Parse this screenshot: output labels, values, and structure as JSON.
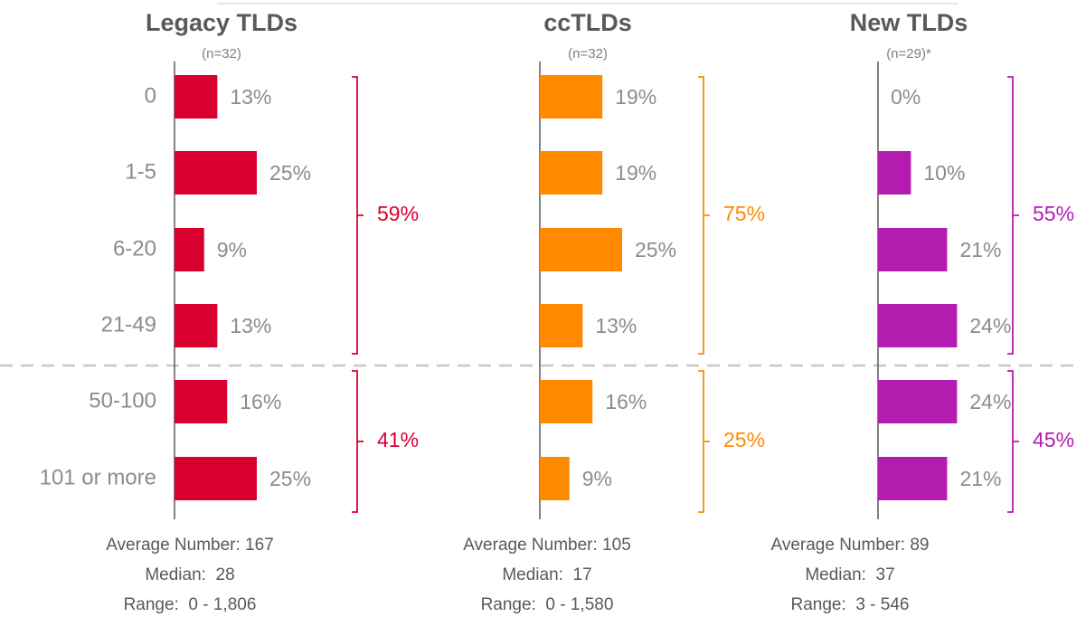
{
  "chart_data": [
    {
      "type": "bar",
      "title": "Legacy TLDs",
      "subtitle": "(n=32)",
      "categories": [
        "0",
        "1-5",
        "6-20",
        "21-49",
        "50-100",
        "101 or more"
      ],
      "values": [
        13,
        25,
        9,
        13,
        16,
        25
      ],
      "value_labels": [
        "13%",
        "25%",
        "9%",
        "13%",
        "16%",
        "25%"
      ],
      "color": "#d9002f",
      "groups": [
        {
          "value": 59,
          "label": "59%"
        },
        {
          "value": 41,
          "label": "41%"
        }
      ],
      "stats": [
        "Average Number: 167",
        "Median:  28",
        "Range:  0 - 1,806"
      ]
    },
    {
      "type": "bar",
      "title": "ccTLDs",
      "subtitle": "(n=32)",
      "categories": [
        null,
        null,
        null,
        null,
        null,
        null
      ],
      "values": [
        19,
        19,
        25,
        13,
        16,
        9
      ],
      "value_labels": [
        "19%",
        "19%",
        "25%",
        "13%",
        "16%",
        "9%"
      ],
      "color": "#ff8a00",
      "groups": [
        {
          "value": 75,
          "label": "75%"
        },
        {
          "value": 25,
          "label": "25%"
        }
      ],
      "stats": [
        "Average Number: 105",
        "Median:  17",
        "Range:  0 - 1,580"
      ]
    },
    {
      "type": "bar",
      "title": "New TLDs",
      "subtitle": "(n=29)*",
      "categories": [
        null,
        null,
        null,
        null,
        null,
        null
      ],
      "values": [
        0,
        10,
        21,
        24,
        24,
        21
      ],
      "value_labels": [
        "0%",
        "10%",
        "21%",
        "24%",
        "24%",
        "21%"
      ],
      "color": "#b41cb0",
      "groups": [
        {
          "value": 55,
          "label": "55%"
        },
        {
          "value": 45,
          "label": "45%"
        }
      ],
      "stats": [
        "Average Number: 89",
        "Median:  37",
        "Range:  3 - 546"
      ]
    }
  ]
}
